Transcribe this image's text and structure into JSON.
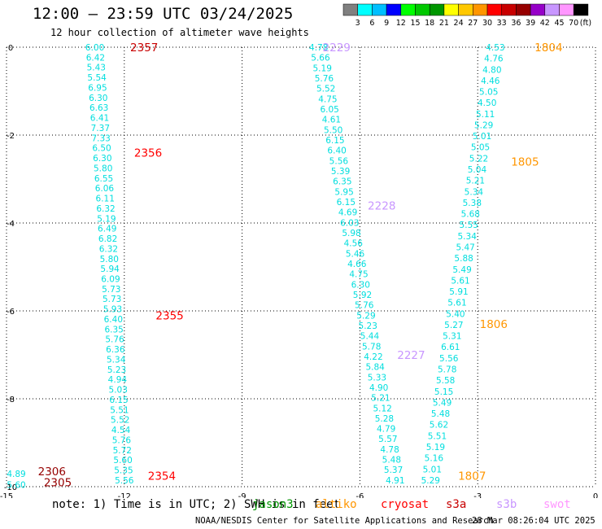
{
  "header": {
    "title": "12:00 — 23:59 UTC 03/24/2025",
    "subtitle": "12 hour collection of altimeter wave heights"
  },
  "color_scale": {
    "colors": [
      "#808080",
      "#00ffff",
      "#00bfff",
      "#0000ff",
      "#00ff00",
      "#00c800",
      "#009600",
      "#ffff00",
      "#ffc800",
      "#ff9600",
      "#ff0000",
      "#c80000",
      "#960000",
      "#9600c8",
      "#c896ff",
      "#ff96ff",
      "#000000"
    ],
    "labels": [
      "3",
      "6",
      "9",
      "12",
      "15",
      "18",
      "21",
      "24",
      "27",
      "30",
      "33",
      "36",
      "39",
      "42",
      "45",
      "70",
      "(ft)"
    ]
  },
  "footer": {
    "note": "note:  1) Time is in UTC;  2) SWH is in feet",
    "sources": [
      {
        "name": "jason3",
        "color": "#009600"
      },
      {
        "name": "altiko",
        "color": "#ff9600"
      },
      {
        "name": "cryosat",
        "color": "#ff0000"
      },
      {
        "name": "s3a",
        "color": "#c80000"
      },
      {
        "name": "s3b",
        "color": "#c896ff"
      },
      {
        "name": "swot",
        "color": "#ff96ff"
      }
    ],
    "credit": "NOAA/NESDIS Center for Satellite Applications and Research",
    "timestamp": "28 Mar 08:26:04 UTC 2025"
  },
  "chart_data": {
    "type": "scatter",
    "title": "12:00 — 23:59 UTC 03/24/2025",
    "xlim": [
      -15,
      0
    ],
    "ylim": [
      -10,
      0
    ],
    "x_ticks": [
      -15,
      -12,
      -9,
      -6,
      -3,
      0
    ],
    "y_ticks": [
      0,
      -2,
      -4,
      -6,
      -8,
      -10
    ],
    "x_tick_labels": [
      "-15",
      "-12",
      "-9",
      "-6",
      "-3",
      "0"
    ],
    "y_tick_labels": [
      "0",
      "-2",
      "-4",
      "-6",
      "-8",
      "-10"
    ],
    "grid": true,
    "tracks": [
      {
        "x0": -12.75,
        "y0": 0.0,
        "x1": -12.0,
        "y1": -9.85,
        "color": "#00dede",
        "values": [
          "6.00",
          "6.42",
          "5.43",
          "5.54",
          "6.95",
          "6.30",
          "6.63",
          "6.41",
          "7.37",
          "7.33",
          "6.50",
          "6.30",
          "5.80",
          "6.55",
          "6.06",
          "6.11",
          "6.32",
          "5.19",
          "6.49",
          "6.82",
          "6.32",
          "5.80",
          "5.94",
          "6.09",
          "5.73",
          "5.73",
          "5.93",
          "6.40",
          "6.35",
          "5.76",
          "6.36",
          "5.34",
          "5.23",
          "4.94",
          "5.03",
          "6.15",
          "5.51",
          "5.52",
          "4.54",
          "5.76",
          "5.72",
          "5.60",
          "5.35",
          "5.56"
        ]
      },
      {
        "x0": -7.05,
        "y0": 0.0,
        "x1": -5.1,
        "y1": -9.85,
        "color": "#00dede",
        "values": [
          "4.78",
          "5.66",
          "5.19",
          "5.76",
          "5.52",
          "4.75",
          "6.05",
          "4.61",
          "5.50",
          "6.15",
          "6.40",
          "5.56",
          "5.39",
          "6.35",
          "5.95",
          "6.15",
          "4.69",
          "6.03",
          "5.98",
          "4.56",
          "5.46",
          "4.66",
          "4.75",
          "6.30",
          "5.92",
          "5.76",
          "5.29",
          "5.23",
          "5.44",
          "5.78",
          "4.22",
          "5.84",
          "5.33",
          "4.90",
          "5.21",
          "5.12",
          "5.28",
          "4.79",
          "5.57",
          "4.78",
          "5.48",
          "5.37",
          "4.91"
        ]
      },
      {
        "x0": -2.55,
        "y0": 0.0,
        "x1": -4.2,
        "y1": -9.85,
        "color": "#00dede",
        "values": [
          "4.53",
          "4.76",
          "4.80",
          "4.46",
          "5.05",
          "4.50",
          "5.11",
          "5.29",
          "5.01",
          "5.05",
          "5.22",
          "5.04",
          "5.21",
          "5.34",
          "5.38",
          "5.68",
          "5.55",
          "5.34",
          "5.47",
          "5.88",
          "5.49",
          "5.61",
          "5.91",
          "5.61",
          "5.40",
          "5.27",
          "5.31",
          "6.61",
          "5.56",
          "5.78",
          "5.58",
          "5.15",
          "5.49",
          "5.48",
          "5.62",
          "5.51",
          "5.19",
          "5.16",
          "5.01",
          "5.29"
        ]
      },
      {
        "x0": -14.75,
        "y0": -9.7,
        "x1": -14.75,
        "y1": -9.95,
        "color": "#00dede",
        "values": [
          "4.89",
          "5.60"
        ]
      }
    ],
    "pass_labels": [
      {
        "text": "2357",
        "x": -11.85,
        "y": 0.0,
        "color": "#c80000"
      },
      {
        "text": "2356",
        "x": -11.75,
        "y": -2.4,
        "color": "#ff0000"
      },
      {
        "text": "2355",
        "x": -11.2,
        "y": -6.1,
        "color": "#ff0000"
      },
      {
        "text": "2354",
        "x": -11.4,
        "y": -9.75,
        "color": "#ff0000"
      },
      {
        "text": "2306",
        "x": -14.2,
        "y": -9.65,
        "color": "#960000"
      },
      {
        "text": "2305",
        "x": -14.05,
        "y": -9.9,
        "color": "#960000"
      },
      {
        "text": "2229",
        "x": -6.95,
        "y": 0.0,
        "color": "#c896ff"
      },
      {
        "text": "2228",
        "x": -5.8,
        "y": -3.6,
        "color": "#c896ff"
      },
      {
        "text": "2227",
        "x": -5.05,
        "y": -7.0,
        "color": "#c896ff"
      },
      {
        "text": "1804",
        "x": -1.55,
        "y": 0.0,
        "color": "#ff9600"
      },
      {
        "text": "1805",
        "x": -2.15,
        "y": -2.6,
        "color": "#ff9600"
      },
      {
        "text": "1806",
        "x": -2.95,
        "y": -6.3,
        "color": "#ff9600"
      },
      {
        "text": "1807",
        "x": -3.5,
        "y": -9.75,
        "color": "#ff9600"
      }
    ]
  }
}
